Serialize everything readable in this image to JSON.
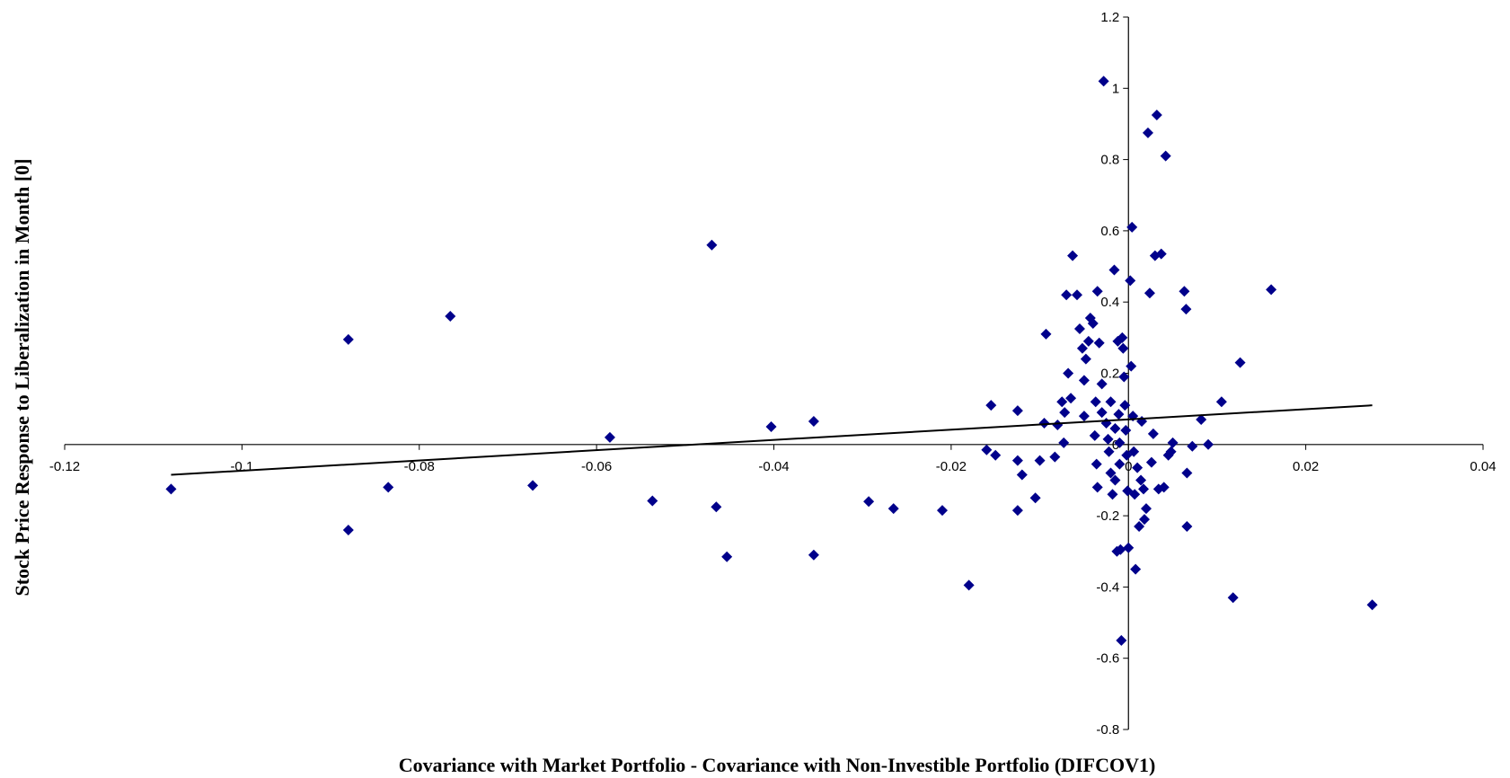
{
  "chart_data": {
    "type": "scatter",
    "title": "",
    "xlabel": "Covariance with Market Portfolio - Covariance with Non-Investible Portfolio (DIFCOV1)",
    "ylabel": "Stock Price Response to Liberalization in Month [0]",
    "xlim": [
      -0.12,
      0.04
    ],
    "ylim": [
      -0.8,
      1.2
    ],
    "x_ticks": [
      -0.12,
      -0.1,
      -0.08,
      -0.06,
      -0.04,
      -0.02,
      0,
      0.02,
      0.04
    ],
    "x_tick_labels": [
      "-0.12",
      "-0.1",
      "-0.08",
      "-0.06",
      "-0.04",
      "-0.02",
      "0",
      "0.02",
      "0.04"
    ],
    "y_ticks": [
      -0.8,
      -0.6,
      -0.4,
      -0.2,
      0,
      0.2,
      0.4,
      0.6,
      0.8,
      1,
      1.2
    ],
    "y_tick_labels": [
      "-0.8",
      "-0.6",
      "-0.4",
      "-0.2",
      "0",
      "0.2",
      "0.4",
      "0.6",
      "0.8",
      "1",
      "1.2"
    ],
    "marker_color": "#00008B",
    "trendline": {
      "x": [
        -0.108,
        0.0275
      ],
      "y": [
        -0.085,
        0.11
      ],
      "color": "#000000"
    },
    "grid": false,
    "legend": "none",
    "points": [
      [
        -0.108,
        -0.125
      ],
      [
        -0.088,
        0.295
      ],
      [
        -0.088,
        -0.24
      ],
      [
        -0.0835,
        -0.12
      ],
      [
        -0.0765,
        0.36
      ],
      [
        -0.0672,
        -0.115
      ],
      [
        -0.0585,
        0.02
      ],
      [
        -0.0537,
        -0.158
      ],
      [
        -0.047,
        0.56
      ],
      [
        -0.0465,
        -0.175
      ],
      [
        -0.0453,
        -0.315
      ],
      [
        -0.0403,
        0.05
      ],
      [
        -0.0355,
        0.065
      ],
      [
        -0.0355,
        -0.31
      ],
      [
        -0.0293,
        -0.16
      ],
      [
        -0.0265,
        -0.18
      ],
      [
        -0.021,
        -0.185
      ],
      [
        -0.018,
        -0.395
      ],
      [
        -0.016,
        -0.015
      ],
      [
        -0.0155,
        0.11
      ],
      [
        -0.015,
        -0.03
      ],
      [
        -0.0125,
        0.095
      ],
      [
        -0.0125,
        -0.185
      ],
      [
        -0.0125,
        -0.045
      ],
      [
        -0.012,
        -0.085
      ],
      [
        -0.0105,
        -0.15
      ],
      [
        -0.01,
        -0.045
      ],
      [
        -0.0095,
        0.06
      ],
      [
        -0.0093,
        0.31
      ],
      [
        -0.0083,
        -0.035
      ],
      [
        -0.008,
        0.055
      ],
      [
        -0.0075,
        0.12
      ],
      [
        -0.0073,
        0.005
      ],
      [
        -0.0072,
        0.09
      ],
      [
        -0.007,
        0.42
      ],
      [
        -0.0068,
        0.2
      ],
      [
        -0.0065,
        0.13
      ],
      [
        -0.0063,
        0.53
      ],
      [
        -0.0058,
        0.42
      ],
      [
        -0.0055,
        0.325
      ],
      [
        -0.0052,
        0.27
      ],
      [
        -0.005,
        0.08
      ],
      [
        -0.005,
        0.18
      ],
      [
        -0.0048,
        0.24
      ],
      [
        -0.0045,
        0.29
      ],
      [
        -0.0043,
        0.355
      ],
      [
        -0.004,
        0.34
      ],
      [
        -0.0035,
        0.43
      ],
      [
        -0.0037,
        0.12
      ],
      [
        -0.0038,
        0.025
      ],
      [
        -0.0036,
        -0.055
      ],
      [
        -0.0035,
        -0.12
      ],
      [
        -0.0033,
        0.285
      ],
      [
        -0.003,
        0.17
      ],
      [
        -0.003,
        0.09
      ],
      [
        -0.0028,
        1.02
      ],
      [
        -0.0025,
        0.06
      ],
      [
        -0.0023,
        0.015
      ],
      [
        -0.0022,
        -0.02
      ],
      [
        -0.002,
        0.12
      ],
      [
        -0.002,
        -0.08
      ],
      [
        -0.0018,
        -0.14
      ],
      [
        -0.0016,
        0.49
      ],
      [
        -0.0015,
        0.045
      ],
      [
        -0.0015,
        -0.1
      ],
      [
        -0.0013,
        -0.3
      ],
      [
        -0.0012,
        0.29
      ],
      [
        -0.0011,
        0.085
      ],
      [
        -0.001,
        0.005
      ],
      [
        -0.001,
        -0.055
      ],
      [
        -0.0009,
        -0.295
      ],
      [
        -0.0008,
        -0.55
      ],
      [
        -0.0007,
        0.3
      ],
      [
        -0.0006,
        0.27
      ],
      [
        -0.0005,
        0.19
      ],
      [
        -0.0004,
        0.11
      ],
      [
        -0.0003,
        0.04
      ],
      [
        -0.0002,
        -0.03
      ],
      [
        -0.0001,
        -0.13
      ],
      [
        0.0,
        -0.29
      ],
      [
        0.0002,
        0.46
      ],
      [
        0.0003,
        0.22
      ],
      [
        0.0004,
        0.61
      ],
      [
        0.0005,
        0.08
      ],
      [
        0.0006,
        -0.02
      ],
      [
        0.0007,
        -0.14
      ],
      [
        0.0008,
        -0.35
      ],
      [
        0.001,
        -0.065
      ],
      [
        0.0012,
        -0.23
      ],
      [
        0.0014,
        -0.1
      ],
      [
        0.0015,
        0.065
      ],
      [
        0.0017,
        -0.125
      ],
      [
        0.0018,
        -0.21
      ],
      [
        0.002,
        -0.18
      ],
      [
        0.0022,
        0.875
      ],
      [
        0.0024,
        0.425
      ],
      [
        0.0026,
        -0.05
      ],
      [
        0.0028,
        0.03
      ],
      [
        0.003,
        0.53
      ],
      [
        0.0032,
        0.925
      ],
      [
        0.0034,
        -0.125
      ],
      [
        0.0037,
        0.535
      ],
      [
        0.004,
        -0.12
      ],
      [
        0.0042,
        0.81
      ],
      [
        0.0045,
        -0.03
      ],
      [
        0.0048,
        -0.02
      ],
      [
        0.005,
        0.005
      ],
      [
        0.0063,
        0.43
      ],
      [
        0.0065,
        0.38
      ],
      [
        0.0066,
        -0.08
      ],
      [
        0.0066,
        -0.23
      ],
      [
        0.0072,
        -0.005
      ],
      [
        0.0082,
        0.07
      ],
      [
        0.009,
        0.0
      ],
      [
        0.0105,
        0.12
      ],
      [
        0.0118,
        -0.43
      ],
      [
        0.0126,
        0.23
      ],
      [
        0.0161,
        0.435
      ],
      [
        0.0275,
        -0.45
      ]
    ]
  }
}
